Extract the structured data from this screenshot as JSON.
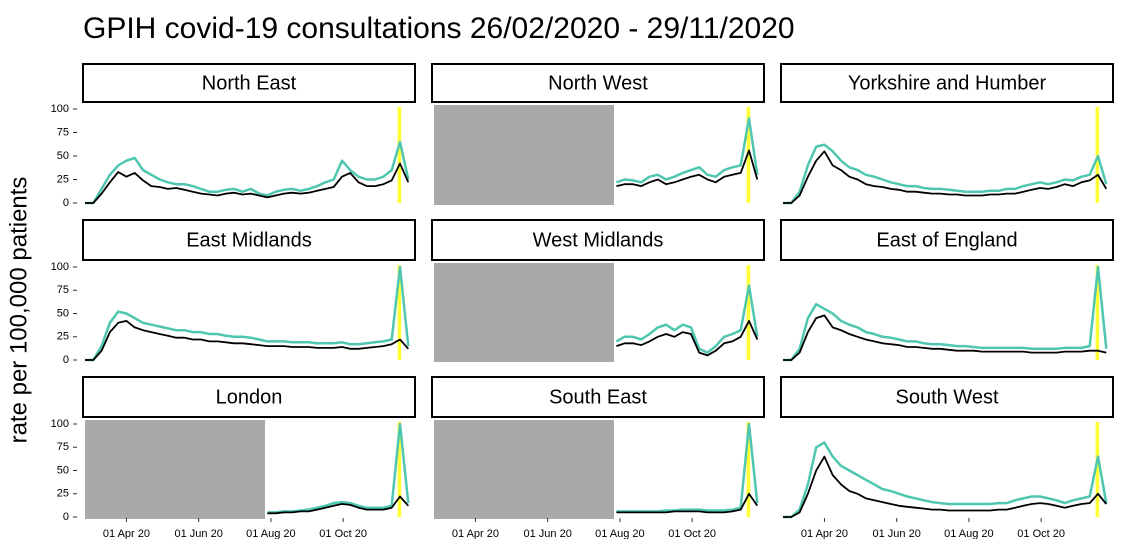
{
  "chart_data": {
    "type": "line",
    "title": "GPIH covid-19 consultations 26/02/2020 - 29/11/2020",
    "ylabel": "rate per 100,000 patients",
    "x": [
      "2020-02-26",
      "2020-03-04",
      "2020-03-11",
      "2020-03-18",
      "2020-03-25",
      "2020-04-01",
      "2020-04-08",
      "2020-04-15",
      "2020-04-22",
      "2020-04-29",
      "2020-05-06",
      "2020-05-13",
      "2020-05-20",
      "2020-05-27",
      "2020-06-03",
      "2020-06-10",
      "2020-06-17",
      "2020-06-24",
      "2020-07-01",
      "2020-07-08",
      "2020-07-15",
      "2020-07-22",
      "2020-07-29",
      "2020-08-05",
      "2020-08-12",
      "2020-08-19",
      "2020-08-26",
      "2020-09-02",
      "2020-09-09",
      "2020-09-16",
      "2020-09-23",
      "2020-09-30",
      "2020-10-07",
      "2020-10-14",
      "2020-10-21",
      "2020-10-28",
      "2020-11-04",
      "2020-11-11",
      "2020-11-18",
      "2020-11-25"
    ],
    "xlim": [
      "2020-02-26",
      "2020-11-29"
    ],
    "xticks": [
      {
        "value": "2020-04-01",
        "label": "01 Apr 20"
      },
      {
        "value": "2020-06-01",
        "label": "01 Jun 20"
      },
      {
        "value": "2020-08-01",
        "label": "01 Aug 20"
      },
      {
        "value": "2020-10-01",
        "label": "01 Oct 20"
      }
    ],
    "ylim": [
      0,
      100
    ],
    "yticks": [
      0,
      25,
      50,
      75,
      100
    ],
    "highlight": [
      "2020-11-16",
      "2020-11-19"
    ],
    "highlight_color": "#ffff33",
    "nodata_color": "#a9a9a9",
    "panels": [
      {
        "title": "North East",
        "series": [
          {
            "color": "#4fc7b0",
            "values": [
              0,
              0,
              15,
              30,
              40,
              45,
              48,
              35,
              30,
              25,
              22,
              20,
              20,
              18,
              15,
              12,
              12,
              14,
              15,
              12,
              15,
              10,
              8,
              12,
              14,
              15,
              13,
              15,
              18,
              22,
              25,
              45,
              35,
              28,
              25,
              25,
              28,
              35,
              65,
              25
            ]
          },
          {
            "color": "#000000",
            "values": [
              0,
              0,
              10,
              22,
              33,
              28,
              32,
              24,
              18,
              17,
              15,
              16,
              14,
              12,
              10,
              9,
              8,
              10,
              11,
              9,
              10,
              8,
              6,
              8,
              10,
              11,
              10,
              11,
              13,
              15,
              17,
              28,
              32,
              22,
              18,
              18,
              20,
              24,
              42,
              22
            ]
          }
        ]
      },
      {
        "title": "North West",
        "nodata": [
          "2020-02-26",
          "2020-07-27"
        ],
        "series": [
          {
            "color": "#4fc7b0",
            "values": [
              null,
              null,
              null,
              null,
              null,
              null,
              null,
              null,
              null,
              null,
              null,
              null,
              null,
              null,
              null,
              null,
              null,
              null,
              null,
              null,
              null,
              null,
              22,
              25,
              24,
              22,
              28,
              30,
              25,
              28,
              32,
              35,
              38,
              30,
              28,
              35,
              38,
              40,
              90,
              30
            ]
          },
          {
            "color": "#000000",
            "values": [
              null,
              null,
              null,
              null,
              null,
              null,
              null,
              null,
              null,
              null,
              null,
              null,
              null,
              null,
              null,
              null,
              null,
              null,
              null,
              null,
              null,
              null,
              18,
              20,
              20,
              18,
              22,
              25,
              20,
              22,
              25,
              28,
              30,
              25,
              22,
              28,
              30,
              32,
              56,
              25
            ]
          }
        ]
      },
      {
        "title": "Yorkshire and Humber",
        "series": [
          {
            "color": "#4fc7b0",
            "values": [
              0,
              0,
              12,
              40,
              60,
              62,
              55,
              45,
              38,
              35,
              30,
              28,
              25,
              22,
              20,
              18,
              18,
              16,
              15,
              15,
              14,
              13,
              12,
              12,
              12,
              13,
              13,
              15,
              15,
              18,
              20,
              22,
              20,
              22,
              25,
              24,
              28,
              30,
              50,
              20
            ]
          },
          {
            "color": "#000000",
            "values": [
              0,
              0,
              8,
              28,
              45,
              55,
              40,
              35,
              28,
              25,
              20,
              18,
              17,
              15,
              14,
              12,
              12,
              11,
              10,
              10,
              9,
              9,
              8,
              8,
              8,
              9,
              9,
              10,
              10,
              12,
              14,
              16,
              15,
              17,
              20,
              18,
              22,
              24,
              30,
              15
            ]
          }
        ]
      },
      {
        "title": "East Midlands",
        "series": [
          {
            "color": "#4fc7b0",
            "values": [
              0,
              0,
              15,
              40,
              52,
              50,
              45,
              40,
              38,
              36,
              34,
              32,
              32,
              30,
              30,
              28,
              28,
              26,
              25,
              25,
              24,
              22,
              20,
              20,
              20,
              19,
              19,
              19,
              18,
              18,
              18,
              19,
              17,
              17,
              18,
              19,
              20,
              22,
              100,
              15
            ]
          },
          {
            "color": "#000000",
            "values": [
              0,
              0,
              10,
              30,
              40,
              42,
              35,
              32,
              30,
              28,
              26,
              24,
              24,
              22,
              22,
              20,
              20,
              19,
              18,
              18,
              17,
              16,
              15,
              15,
              15,
              14,
              14,
              14,
              13,
              13,
              13,
              14,
              12,
              12,
              13,
              14,
              15,
              17,
              22,
              12
            ]
          }
        ]
      },
      {
        "title": "West Midlands",
        "nodata": [
          "2020-02-26",
          "2020-07-27"
        ],
        "series": [
          {
            "color": "#4fc7b0",
            "values": [
              null,
              null,
              null,
              null,
              null,
              null,
              null,
              null,
              null,
              null,
              null,
              null,
              null,
              null,
              null,
              null,
              null,
              null,
              null,
              null,
              null,
              null,
              20,
              25,
              25,
              22,
              28,
              35,
              38,
              32,
              38,
              35,
              12,
              8,
              15,
              25,
              28,
              32,
              80,
              25
            ]
          },
          {
            "color": "#000000",
            "values": [
              null,
              null,
              null,
              null,
              null,
              null,
              null,
              null,
              null,
              null,
              null,
              null,
              null,
              null,
              null,
              null,
              null,
              null,
              null,
              null,
              null,
              null,
              15,
              18,
              18,
              16,
              20,
              25,
              28,
              25,
              30,
              28,
              8,
              5,
              10,
              18,
              20,
              25,
              42,
              22
            ]
          }
        ]
      },
      {
        "title": "East of England",
        "series": [
          {
            "color": "#4fc7b0",
            "values": [
              0,
              0,
              12,
              45,
              60,
              55,
              50,
              42,
              38,
              35,
              30,
              28,
              25,
              24,
              22,
              20,
              20,
              18,
              17,
              17,
              16,
              15,
              15,
              14,
              13,
              13,
              13,
              13,
              13,
              13,
              12,
              12,
              12,
              12,
              13,
              13,
              13,
              15,
              100,
              12
            ]
          },
          {
            "color": "#000000",
            "values": [
              0,
              0,
              8,
              30,
              45,
              48,
              35,
              32,
              28,
              25,
              22,
              20,
              18,
              17,
              16,
              14,
              14,
              13,
              12,
              12,
              11,
              10,
              10,
              10,
              9,
              9,
              9,
              9,
              9,
              9,
              8,
              8,
              8,
              8,
              9,
              9,
              9,
              10,
              10,
              8
            ]
          }
        ]
      },
      {
        "title": "London",
        "nodata": [
          "2020-02-26",
          "2020-07-27"
        ],
        "series": [
          {
            "color": "#4fc7b0",
            "values": [
              null,
              null,
              null,
              null,
              null,
              null,
              null,
              null,
              null,
              null,
              null,
              null,
              null,
              null,
              null,
              null,
              null,
              null,
              null,
              null,
              null,
              null,
              5,
              5,
              6,
              6,
              7,
              8,
              10,
              12,
              15,
              16,
              15,
              12,
              10,
              10,
              10,
              12,
              100,
              15
            ]
          },
          {
            "color": "#000000",
            "values": [
              null,
              null,
              null,
              null,
              null,
              null,
              null,
              null,
              null,
              null,
              null,
              null,
              null,
              null,
              null,
              null,
              null,
              null,
              null,
              null,
              null,
              null,
              4,
              4,
              5,
              5,
              6,
              6,
              8,
              10,
              12,
              14,
              13,
              10,
              8,
              8,
              8,
              10,
              22,
              12
            ]
          }
        ]
      },
      {
        "title": "South East",
        "nodata": [
          "2020-02-26",
          "2020-07-27"
        ],
        "series": [
          {
            "color": "#4fc7b0",
            "values": [
              null,
              null,
              null,
              null,
              null,
              null,
              null,
              null,
              null,
              null,
              null,
              null,
              null,
              null,
              null,
              null,
              null,
              null,
              null,
              null,
              null,
              null,
              6,
              6,
              6,
              6,
              6,
              6,
              7,
              7,
              8,
              8,
              8,
              7,
              7,
              7,
              8,
              10,
              100,
              15
            ]
          },
          {
            "color": "#000000",
            "values": [
              null,
              null,
              null,
              null,
              null,
              null,
              null,
              null,
              null,
              null,
              null,
              null,
              null,
              null,
              null,
              null,
              null,
              null,
              null,
              null,
              null,
              null,
              5,
              5,
              5,
              5,
              5,
              5,
              5,
              6,
              6,
              6,
              6,
              5,
              5,
              5,
              6,
              8,
              25,
              12
            ]
          }
        ]
      },
      {
        "title": "South West",
        "series": [
          {
            "color": "#4fc7b0",
            "values": [
              0,
              0,
              8,
              35,
              75,
              80,
              65,
              55,
              50,
              45,
              40,
              35,
              30,
              28,
              25,
              22,
              20,
              18,
              16,
              15,
              14,
              14,
              14,
              14,
              14,
              14,
              15,
              15,
              18,
              20,
              22,
              22,
              20,
              18,
              15,
              18,
              20,
              22,
              65,
              15
            ]
          },
          {
            "color": "#000000",
            "values": [
              0,
              0,
              5,
              25,
              50,
              65,
              45,
              35,
              28,
              25,
              20,
              18,
              16,
              14,
              12,
              11,
              10,
              9,
              8,
              8,
              7,
              7,
              7,
              7,
              7,
              7,
              8,
              8,
              10,
              12,
              14,
              15,
              14,
              12,
              10,
              12,
              14,
              15,
              25,
              14
            ]
          }
        ]
      }
    ]
  }
}
